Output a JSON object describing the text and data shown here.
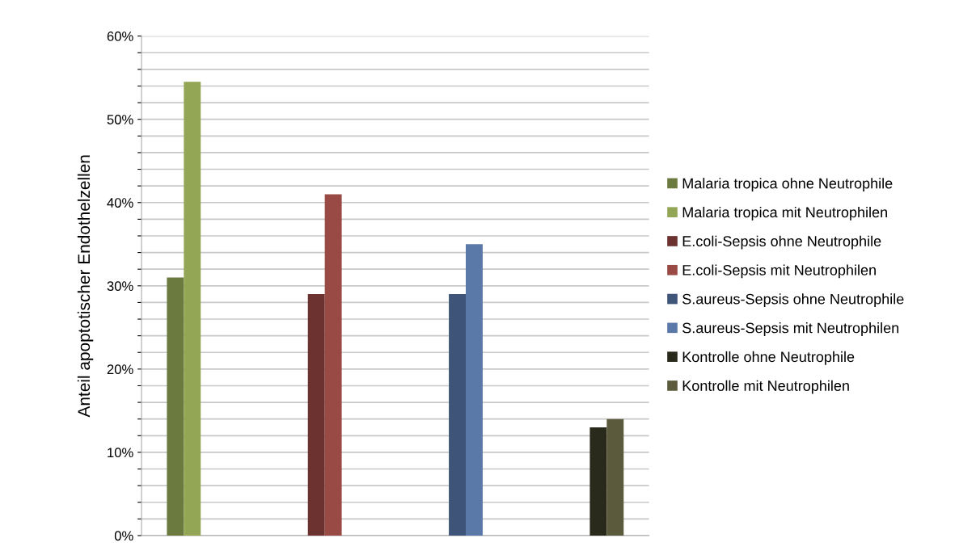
{
  "chart_data": {
    "type": "bar",
    "ylabel": "Anteil apoptotischer Endothelzellen",
    "categories": [
      null,
      null,
      null,
      null
    ],
    "series": [
      {
        "name": "Malaria tropica ohne Neutrophile",
        "color": "#6b7a3e",
        "values": [
          31,
          null,
          null,
          null
        ]
      },
      {
        "name": "Malaria tropica mit Neutrophilen",
        "color": "#93a656",
        "values": [
          54.5,
          null,
          null,
          null
        ]
      },
      {
        "name": "E.coli-Sepsis ohne Neutrophile",
        "color": "#6b3230",
        "values": [
          null,
          29,
          null,
          null
        ]
      },
      {
        "name": "E.coli-Sepsis mit Neutrophilen",
        "color": "#9a4a45",
        "values": [
          null,
          41,
          null,
          null
        ]
      },
      {
        "name": "S.aureus-Sepsis ohne Neutrophile",
        "color": "#3e5478",
        "values": [
          null,
          null,
          29,
          null
        ]
      },
      {
        "name": "S.aureus-Sepsis mit Neutrophilen",
        "color": "#5a79a8",
        "values": [
          null,
          null,
          35,
          null
        ]
      },
      {
        "name": "Kontrolle ohne Neutrophile",
        "color": "#2a2a1c",
        "values": [
          null,
          null,
          null,
          13
        ]
      },
      {
        "name": "Kontrolle mit Neutrophilen",
        "color": "#5c5a3c",
        "values": [
          null,
          null,
          null,
          14
        ]
      }
    ],
    "ylim": [
      0,
      60
    ],
    "yticks": [
      {
        "value": 0,
        "label": "0%"
      },
      {
        "value": 2,
        "label": null
      },
      {
        "value": 4,
        "label": null
      },
      {
        "value": 6,
        "label": null
      },
      {
        "value": 8,
        "label": null
      },
      {
        "value": 10,
        "label": "10%"
      },
      {
        "value": 12,
        "label": null
      },
      {
        "value": 14,
        "label": null
      },
      {
        "value": 16,
        "label": null
      },
      {
        "value": 18,
        "label": null
      },
      {
        "value": 20,
        "label": "20%"
      },
      {
        "value": 22,
        "label": null
      },
      {
        "value": 24,
        "label": null
      },
      {
        "value": 26,
        "label": null
      },
      {
        "value": 28,
        "label": null
      },
      {
        "value": 30,
        "label": "30%"
      },
      {
        "value": 32,
        "label": null
      },
      {
        "value": 34,
        "label": null
      },
      {
        "value": 36,
        "label": null
      },
      {
        "value": 38,
        "label": null
      },
      {
        "value": 40,
        "label": "40%"
      },
      {
        "value": 42,
        "label": null
      },
      {
        "value": 44,
        "label": null
      },
      {
        "value": 46,
        "label": null
      },
      {
        "value": 48,
        "label": null
      },
      {
        "value": 50,
        "label": "50%"
      },
      {
        "value": 52,
        "label": null
      },
      {
        "value": 54,
        "label": null
      },
      {
        "value": 56,
        "label": null
      },
      {
        "value": 58,
        "label": null
      },
      {
        "value": 60,
        "label": "60%"
      }
    ],
    "grid": "y",
    "legend": "right"
  }
}
